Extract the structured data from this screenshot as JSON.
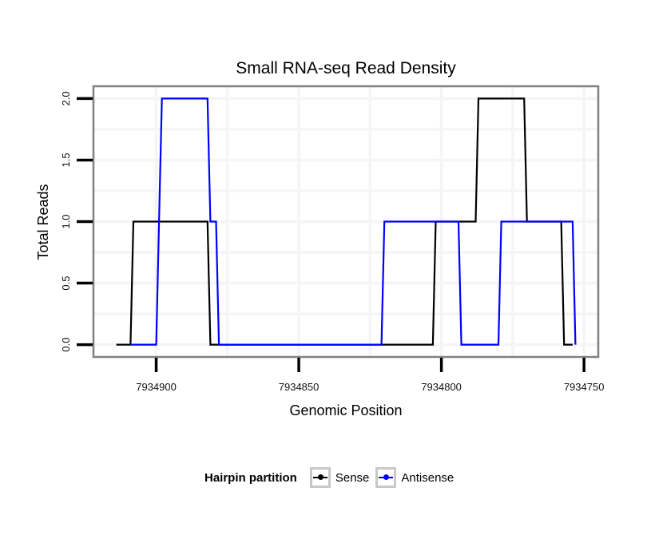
{
  "chart_data": {
    "type": "line",
    "step": true,
    "title": "Small RNA-seq Read Density",
    "xlabel": "Genomic Position",
    "ylabel": "Total Reads",
    "x_reversed": true,
    "xlim": [
      7934922,
      7934745
    ],
    "ylim": [
      -0.1,
      2.1
    ],
    "xticks": [
      7934900,
      7934850,
      7934800,
      7934750
    ],
    "xtick_labels": [
      "7934900",
      "7934850",
      "7934800",
      "7934750"
    ],
    "yticks": [
      0.0,
      0.5,
      1.0,
      1.5,
      2.0
    ],
    "ytick_labels": [
      "0.0",
      "0.5",
      "1.0",
      "1.5",
      "2.0"
    ],
    "grid": true,
    "legend": {
      "title": "Hairpin partition",
      "placement": "bottom",
      "entries": [
        "Sense",
        "Antisense"
      ]
    },
    "series": [
      {
        "name": "Sense",
        "color": "#000000",
        "points": [
          [
            7934914,
            0
          ],
          [
            7934909,
            0
          ],
          [
            7934908,
            1
          ],
          [
            7934882,
            1
          ],
          [
            7934881,
            0
          ],
          [
            7934803,
            0
          ],
          [
            7934802,
            1
          ],
          [
            7934788,
            1
          ],
          [
            7934787,
            2
          ],
          [
            7934771,
            2
          ],
          [
            7934770,
            1
          ],
          [
            7934758,
            1
          ],
          [
            7934757,
            0
          ],
          [
            7934754,
            0
          ]
        ]
      },
      {
        "name": "Antisense",
        "color": "#0000ff",
        "points": [
          [
            7934909,
            0
          ],
          [
            7934900,
            0
          ],
          [
            7934899,
            1
          ],
          [
            7934898,
            2
          ],
          [
            7934882,
            2
          ],
          [
            7934881,
            1
          ],
          [
            7934879,
            1
          ],
          [
            7934878,
            0
          ],
          [
            7934821,
            0
          ],
          [
            7934820,
            1
          ],
          [
            7934794,
            1
          ],
          [
            7934793,
            0
          ],
          [
            7934780,
            0
          ],
          [
            7934779,
            1
          ],
          [
            7934754,
            1
          ],
          [
            7934753,
            0
          ]
        ]
      }
    ]
  }
}
